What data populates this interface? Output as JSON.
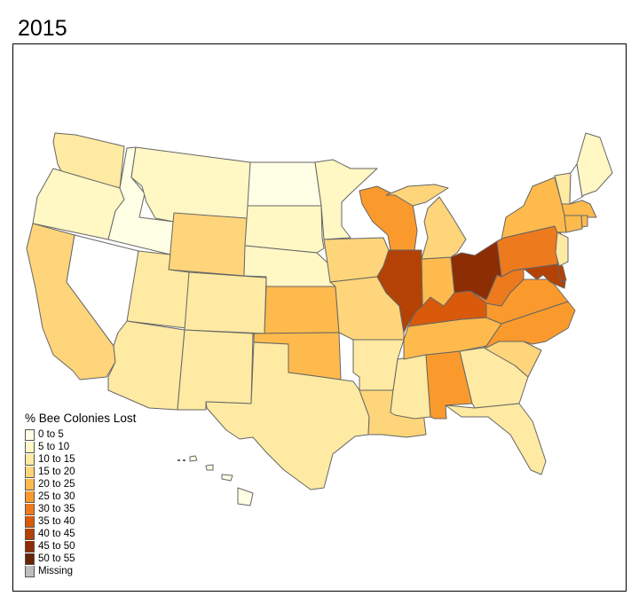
{
  "title": "2015",
  "legend": {
    "title": "% Bee Colonies Lost",
    "bins": [
      {
        "label": "0 to 5",
        "color": "#FFFFE5"
      },
      {
        "label": "5 to 10",
        "color": "#FFF7C4"
      },
      {
        "label": "10 to 15",
        "color": "#FEEAA2"
      },
      {
        "label": "15 to 20",
        "color": "#FED57A"
      },
      {
        "label": "20 to 25",
        "color": "#FEBA4C"
      },
      {
        "label": "25 to 30",
        "color": "#FB9A2C"
      },
      {
        "label": "30 to 35",
        "color": "#EE7A1E"
      },
      {
        "label": "35 to 40",
        "color": "#D95A0A"
      },
      {
        "label": "40 to 45",
        "color": "#B44204"
      },
      {
        "label": "45 to 50",
        "color": "#8C2D04"
      },
      {
        "label": "50 to 55",
        "color": "#662506"
      },
      {
        "label": "Missing",
        "color": "#BEBEBE"
      }
    ]
  },
  "states": {
    "WA": "10 to 15",
    "OR": "5 to 10",
    "CA": "15 to 20",
    "NV": null,
    "ID": "0 to 5",
    "MT": "5 to 10",
    "WY": "15 to 20",
    "UT": "10 to 15",
    "CO": "10 to 15",
    "AZ": "10 to 15",
    "NM": "10 to 15",
    "ND": "0 to 5",
    "SD": "5 to 10",
    "NE": "5 to 10",
    "KS": "20 to 25",
    "OK": "20 to 25",
    "TX": "10 to 15",
    "MN": "5 to 10",
    "IA": "15 to 20",
    "MO": "15 to 20",
    "AR": "10 to 15",
    "LA": "15 to 20",
    "WI": "25 to 30",
    "IL": "40 to 45",
    "MI": "15 to 20",
    "IN": "20 to 25",
    "OH": "45 to 50",
    "KY": "35 to 40",
    "TN": "20 to 25",
    "MS": "10 to 15",
    "AL": "25 to 30",
    "GA": "10 to 15",
    "FL": "10 to 15",
    "SC": "15 to 20",
    "NC": "25 to 30",
    "VA": "25 to 30",
    "WV": "30 to 35",
    "PA": "30 to 35",
    "MD": "40 to 45",
    "DE": "40 to 45",
    "NJ": "10 to 15",
    "NY": "20 to 25",
    "VT": "10 to 15",
    "NH": null,
    "ME": "5 to 10",
    "MA": "20 to 25",
    "CT": "20 to 25",
    "RI": "20 to 25",
    "HI": "0 to 5",
    "AK": null
  }
}
